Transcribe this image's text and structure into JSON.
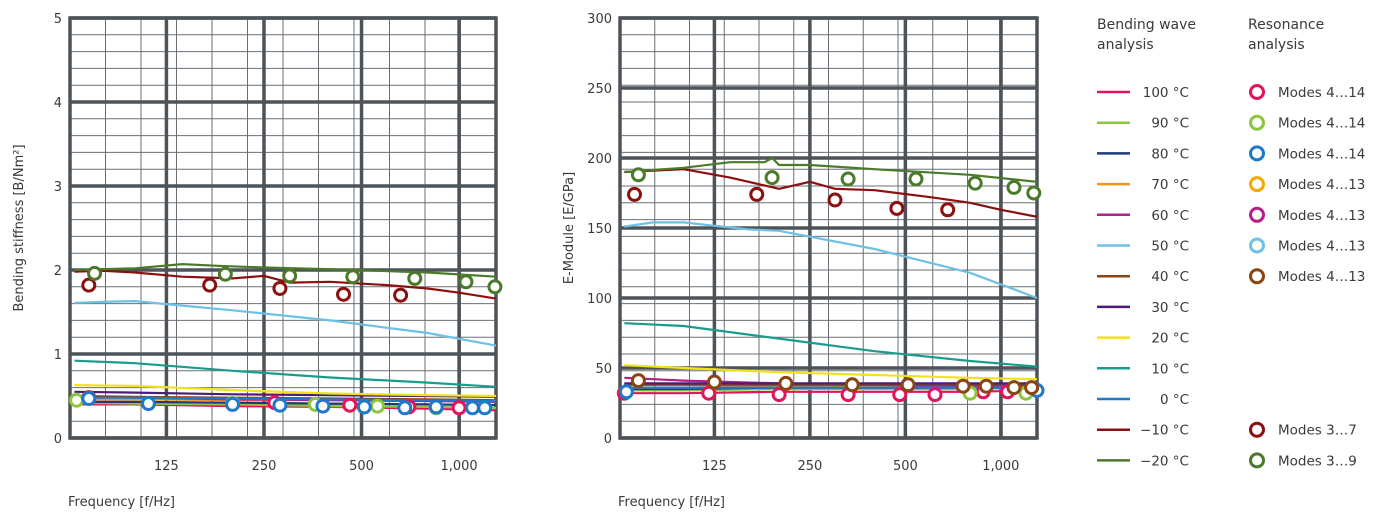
{
  "chart_data": [
    {
      "type": "line",
      "xlabel": "Frequency [f/Hz]",
      "ylabel": "Bending stiffness [B/Nm²]",
      "x_scale": "log",
      "xlim": [
        63,
        1300
      ],
      "ylim": [
        0,
        5
      ],
      "yticks": [
        "0",
        "1",
        "2",
        "3",
        "4",
        "5"
      ],
      "xtick_values": [
        125,
        250,
        500,
        1000
      ],
      "xtick_labels": [
        "125",
        "250",
        "500",
        "1,000"
      ],
      "grid": true,
      "series": [
        {
          "name": "100 °C",
          "color": "#e4135a",
          "x": [
            65,
            100,
            200,
            400,
            800,
            1300
          ],
          "y": [
            0.4,
            0.4,
            0.38,
            0.37,
            0.35,
            0.33
          ]
        },
        {
          "name": "90 °C",
          "color": "#8cc63f",
          "x": [
            65,
            100,
            200,
            400,
            800,
            1300
          ],
          "y": [
            0.42,
            0.41,
            0.4,
            0.38,
            0.37,
            0.36
          ]
        },
        {
          "name": "80 °C",
          "color": "#1a3c7a",
          "x": [
            65,
            100,
            200,
            400,
            800,
            1300
          ],
          "y": [
            0.43,
            0.43,
            0.42,
            0.41,
            0.4,
            0.39
          ]
        },
        {
          "name": "70 °C",
          "color": "#f7941d",
          "x": [
            65,
            100,
            200,
            400,
            800,
            1300
          ],
          "y": [
            0.46,
            0.46,
            0.45,
            0.45,
            0.44,
            0.44
          ]
        },
        {
          "name": "60 °C",
          "color": "#b51f8c",
          "x": [
            65,
            100,
            200,
            400,
            800,
            1300
          ],
          "y": [
            0.5,
            0.48,
            0.46,
            0.45,
            0.44,
            0.43
          ]
        },
        {
          "name": "50 °C",
          "color": "#6ec1e4",
          "x": [
            65,
            80,
            100,
            120,
            200,
            400,
            800,
            1300
          ],
          "y": [
            1.61,
            1.62,
            1.63,
            1.6,
            1.52,
            1.4,
            1.25,
            1.1
          ]
        },
        {
          "name": "40 °C",
          "color": "#8b4513",
          "x": [
            65,
            100,
            200,
            400,
            800,
            1300
          ],
          "y": [
            0.5,
            0.49,
            0.48,
            0.47,
            0.46,
            0.45
          ]
        },
        {
          "name": "30 °C",
          "color": "#4b1c7a",
          "x": [
            65,
            100,
            200,
            400,
            800,
            1300
          ],
          "y": [
            0.55,
            0.54,
            0.52,
            0.51,
            0.5,
            0.49
          ]
        },
        {
          "name": "20 °C",
          "color": "#f2e21b",
          "x": [
            65,
            100,
            200,
            400,
            800,
            1300
          ],
          "y": [
            0.63,
            0.62,
            0.57,
            0.53,
            0.51,
            0.5
          ]
        },
        {
          "name": "10 °C",
          "color": "#1a9c8c",
          "x": [
            65,
            100,
            200,
            400,
            800,
            1300
          ],
          "y": [
            0.92,
            0.89,
            0.8,
            0.72,
            0.66,
            0.61
          ]
        },
        {
          "name": "0 °C",
          "color": "#1f78c8",
          "x": [
            65,
            100,
            200,
            400,
            800,
            1300
          ],
          "y": [
            0.48,
            0.48,
            0.47,
            0.46,
            0.45,
            0.44
          ]
        },
        {
          "name": "−10 °C",
          "color": "#8b1010",
          "x": [
            65,
            80,
            100,
            140,
            200,
            250,
            300,
            400,
            600,
            800,
            1000,
            1300
          ],
          "y": [
            1.98,
            1.99,
            1.97,
            1.92,
            1.9,
            1.93,
            1.85,
            1.86,
            1.82,
            1.78,
            1.73,
            1.66
          ]
        },
        {
          "name": "−20 °C",
          "color": "#4a7a2a",
          "x": [
            65,
            100,
            140,
            180,
            250,
            400,
            800,
            1300
          ],
          "y": [
            2.0,
            2.02,
            2.07,
            2.05,
            2.03,
            2.01,
            1.97,
            1.92
          ]
        }
      ],
      "markers": [
        {
          "name": "Modes 3…7",
          "color": "#8b1010",
          "x": [
            72,
            170,
            280,
            440,
            660
          ],
          "y": [
            1.82,
            1.82,
            1.78,
            1.71,
            1.7
          ]
        },
        {
          "name": "Modes 3…9",
          "color": "#4a7a2a",
          "x": [
            75,
            190,
            300,
            470,
            730,
            1050,
            1290
          ],
          "y": [
            1.96,
            1.95,
            1.93,
            1.92,
            1.9,
            1.86,
            1.8
          ]
        },
        {
          "name": "Modes 4…14",
          "color": "#8cc63f",
          "x": [
            66,
            200,
            360,
            560,
            850
          ],
          "y": [
            0.45,
            0.41,
            0.4,
            0.38,
            0.36
          ]
        },
        {
          "name": "Modes 4…14",
          "color": "#e4135a",
          "x": [
            72,
            270,
            460,
            700,
            1000
          ],
          "y": [
            0.48,
            0.42,
            0.39,
            0.37,
            0.36
          ]
        },
        {
          "name": "Modes 4…14",
          "color": "#1f78c8",
          "x": [
            72,
            110,
            200,
            280,
            380,
            510,
            680,
            850,
            1100,
            1200
          ],
          "y": [
            0.47,
            0.41,
            0.4,
            0.39,
            0.38,
            0.37,
            0.36,
            0.37,
            0.36,
            0.36
          ]
        }
      ]
    },
    {
      "type": "line",
      "xlabel": "Frequency [f/Hz]",
      "ylabel": "E-Module [E/GPa]",
      "x_scale": "log",
      "xlim": [
        63,
        1300
      ],
      "ylim": [
        0,
        300
      ],
      "yticks": [
        "0",
        "50",
        "100",
        "150",
        "200",
        "250",
        "300"
      ],
      "xtick_values": [
        125,
        250,
        500,
        1000
      ],
      "xtick_labels": [
        "125",
        "250",
        "500",
        "1,000"
      ],
      "grid": true,
      "series": [
        {
          "name": "100 °C",
          "color": "#e4135a",
          "x": [
            65,
            100,
            200,
            400,
            800,
            1300
          ],
          "y": [
            32,
            32,
            33,
            33,
            33,
            34
          ]
        },
        {
          "name": "90 °C",
          "color": "#8cc63f",
          "x": [
            65,
            100,
            200,
            400,
            800,
            1300
          ],
          "y": [
            34,
            34,
            35,
            35,
            35,
            36
          ]
        },
        {
          "name": "80 °C",
          "color": "#1a3c7a",
          "x": [
            65,
            100,
            200,
            400,
            800,
            1300
          ],
          "y": [
            35,
            35,
            36,
            36,
            36,
            36
          ]
        },
        {
          "name": "70 °C",
          "color": "#f7941d",
          "x": [
            65,
            100,
            200,
            400,
            800,
            1300
          ],
          "y": [
            36,
            36,
            37,
            37,
            37,
            38
          ]
        },
        {
          "name": "60 °C",
          "color": "#b51f8c",
          "x": [
            65,
            100,
            200,
            400,
            800,
            1300
          ],
          "y": [
            43,
            41,
            39,
            38,
            37,
            37
          ]
        },
        {
          "name": "50 °C",
          "color": "#6ec1e4",
          "x": [
            65,
            80,
            100,
            120,
            160,
            200,
            400,
            800,
            1300
          ],
          "y": [
            151,
            154,
            154,
            152,
            149,
            148,
            135,
            118,
            100
          ]
        },
        {
          "name": "40 °C",
          "color": "#8b4513",
          "x": [
            65,
            100,
            200,
            400,
            800,
            1300
          ],
          "y": [
            38,
            38,
            38,
            38,
            38,
            38
          ]
        },
        {
          "name": "30 °C",
          "color": "#4b1c7a",
          "x": [
            65,
            100,
            200,
            400,
            800,
            1300
          ],
          "y": [
            39,
            39,
            39,
            39,
            39,
            39
          ]
        },
        {
          "name": "20 °C",
          "color": "#f2e21b",
          "x": [
            65,
            100,
            200,
            400,
            800,
            1300
          ],
          "y": [
            52,
            50,
            47,
            45,
            43,
            42
          ]
        },
        {
          "name": "10 °C",
          "color": "#1a9c8c",
          "x": [
            65,
            100,
            200,
            400,
            800,
            1300
          ],
          "y": [
            82,
            80,
            71,
            62,
            55,
            51
          ]
        },
        {
          "name": "0 °C",
          "color": "#1f78c8",
          "x": [
            65,
            100,
            200,
            400,
            800,
            1300
          ],
          "y": [
            36,
            36,
            36,
            36,
            36,
            36
          ]
        },
        {
          "name": "−10 °C",
          "color": "#8b1010",
          "x": [
            65,
            80,
            100,
            140,
            200,
            250,
            300,
            400,
            600,
            800,
            1000,
            1300
          ],
          "y": [
            190,
            191,
            192,
            186,
            178,
            183,
            178,
            177,
            172,
            168,
            163,
            158
          ]
        },
        {
          "name": "−20 °C",
          "color": "#4a7a2a",
          "x": [
            65,
            100,
            140,
            180,
            190,
            200,
            250,
            400,
            800,
            1300
          ],
          "y": [
            190,
            193,
            197,
            197,
            200,
            195,
            195,
            192,
            188,
            183
          ]
        }
      ],
      "markers": [
        {
          "name": "Modes 3…7",
          "color": "#8b1010",
          "x": [
            70,
            170,
            300,
            470,
            680
          ],
          "y": [
            174,
            174,
            170,
            164,
            163
          ]
        },
        {
          "name": "Modes 3…9",
          "color": "#4a7a2a",
          "x": [
            72,
            190,
            330,
            540,
            830,
            1100,
            1270
          ],
          "y": [
            188,
            186,
            185,
            185,
            182,
            179,
            175
          ]
        },
        {
          "name": "Modes 4…14",
          "color": "#e4135a",
          "x": [
            65,
            120,
            200,
            330,
            480,
            620,
            880,
            1050
          ],
          "y": [
            32,
            32,
            31,
            31,
            31,
            31,
            33,
            33
          ]
        },
        {
          "name": "Modes 4…14",
          "color": "#8cc63f",
          "x": [
            800,
            1200
          ],
          "y": [
            32,
            32
          ]
        },
        {
          "name": "Modes 4…14",
          "color": "#1f78c8",
          "x": [
            66,
            1300
          ],
          "y": [
            33,
            34
          ]
        },
        {
          "name": "Modes 4…13",
          "color": "#8b4513",
          "x": [
            72,
            125,
            210,
            340,
            510,
            760,
            900,
            1100,
            1250
          ],
          "y": [
            41,
            40,
            39,
            38,
            38,
            37,
            37,
            36,
            36
          ]
        }
      ]
    }
  ],
  "legend": {
    "heading_left": [
      "Bending wave",
      "analysis"
    ],
    "heading_right": [
      "Resonance",
      "analysis"
    ],
    "lines": [
      {
        "label": "100 °C",
        "color": "#e4135a"
      },
      {
        "label": "90 °C",
        "color": "#8cc63f"
      },
      {
        "label": "80 °C",
        "color": "#1a3c7a"
      },
      {
        "label": "70 °C",
        "color": "#f7941d"
      },
      {
        "label": "60 °C",
        "color": "#b51f8c"
      },
      {
        "label": "50 °C",
        "color": "#6ec1e4"
      },
      {
        "label": "40 °C",
        "color": "#8b4513"
      },
      {
        "label": "30 °C",
        "color": "#4b1c7a"
      },
      {
        "label": "20 °C",
        "color": "#f2e21b"
      },
      {
        "label": "10 °C",
        "color": "#1a9c8c"
      },
      {
        "label": "0 °C",
        "color": "#1f78c8"
      },
      {
        "label": "−10 °C",
        "color": "#8b1010"
      },
      {
        "label": "−20 °C",
        "color": "#4a7a2a"
      }
    ],
    "markers": [
      {
        "label": "Modes 4…14",
        "color": "#e4135a",
        "row": 0
      },
      {
        "label": "Modes 4…14",
        "color": "#8cc63f",
        "row": 1
      },
      {
        "label": "Modes 4…14",
        "color": "#1f78c8",
        "row": 2
      },
      {
        "label": "Modes 4…13",
        "color": "#f7a800",
        "row": 3
      },
      {
        "label": "Modes 4…13",
        "color": "#b51f8c",
        "row": 4
      },
      {
        "label": "Modes 4…13",
        "color": "#6ec1e4",
        "row": 5
      },
      {
        "label": "Modes 4…13",
        "color": "#8b4513",
        "row": 6
      },
      {
        "label": "Modes 3…7",
        "color": "#8b1010",
        "row": 11
      },
      {
        "label": "Modes 3…9",
        "color": "#4a7a2a",
        "row": 12
      }
    ]
  }
}
